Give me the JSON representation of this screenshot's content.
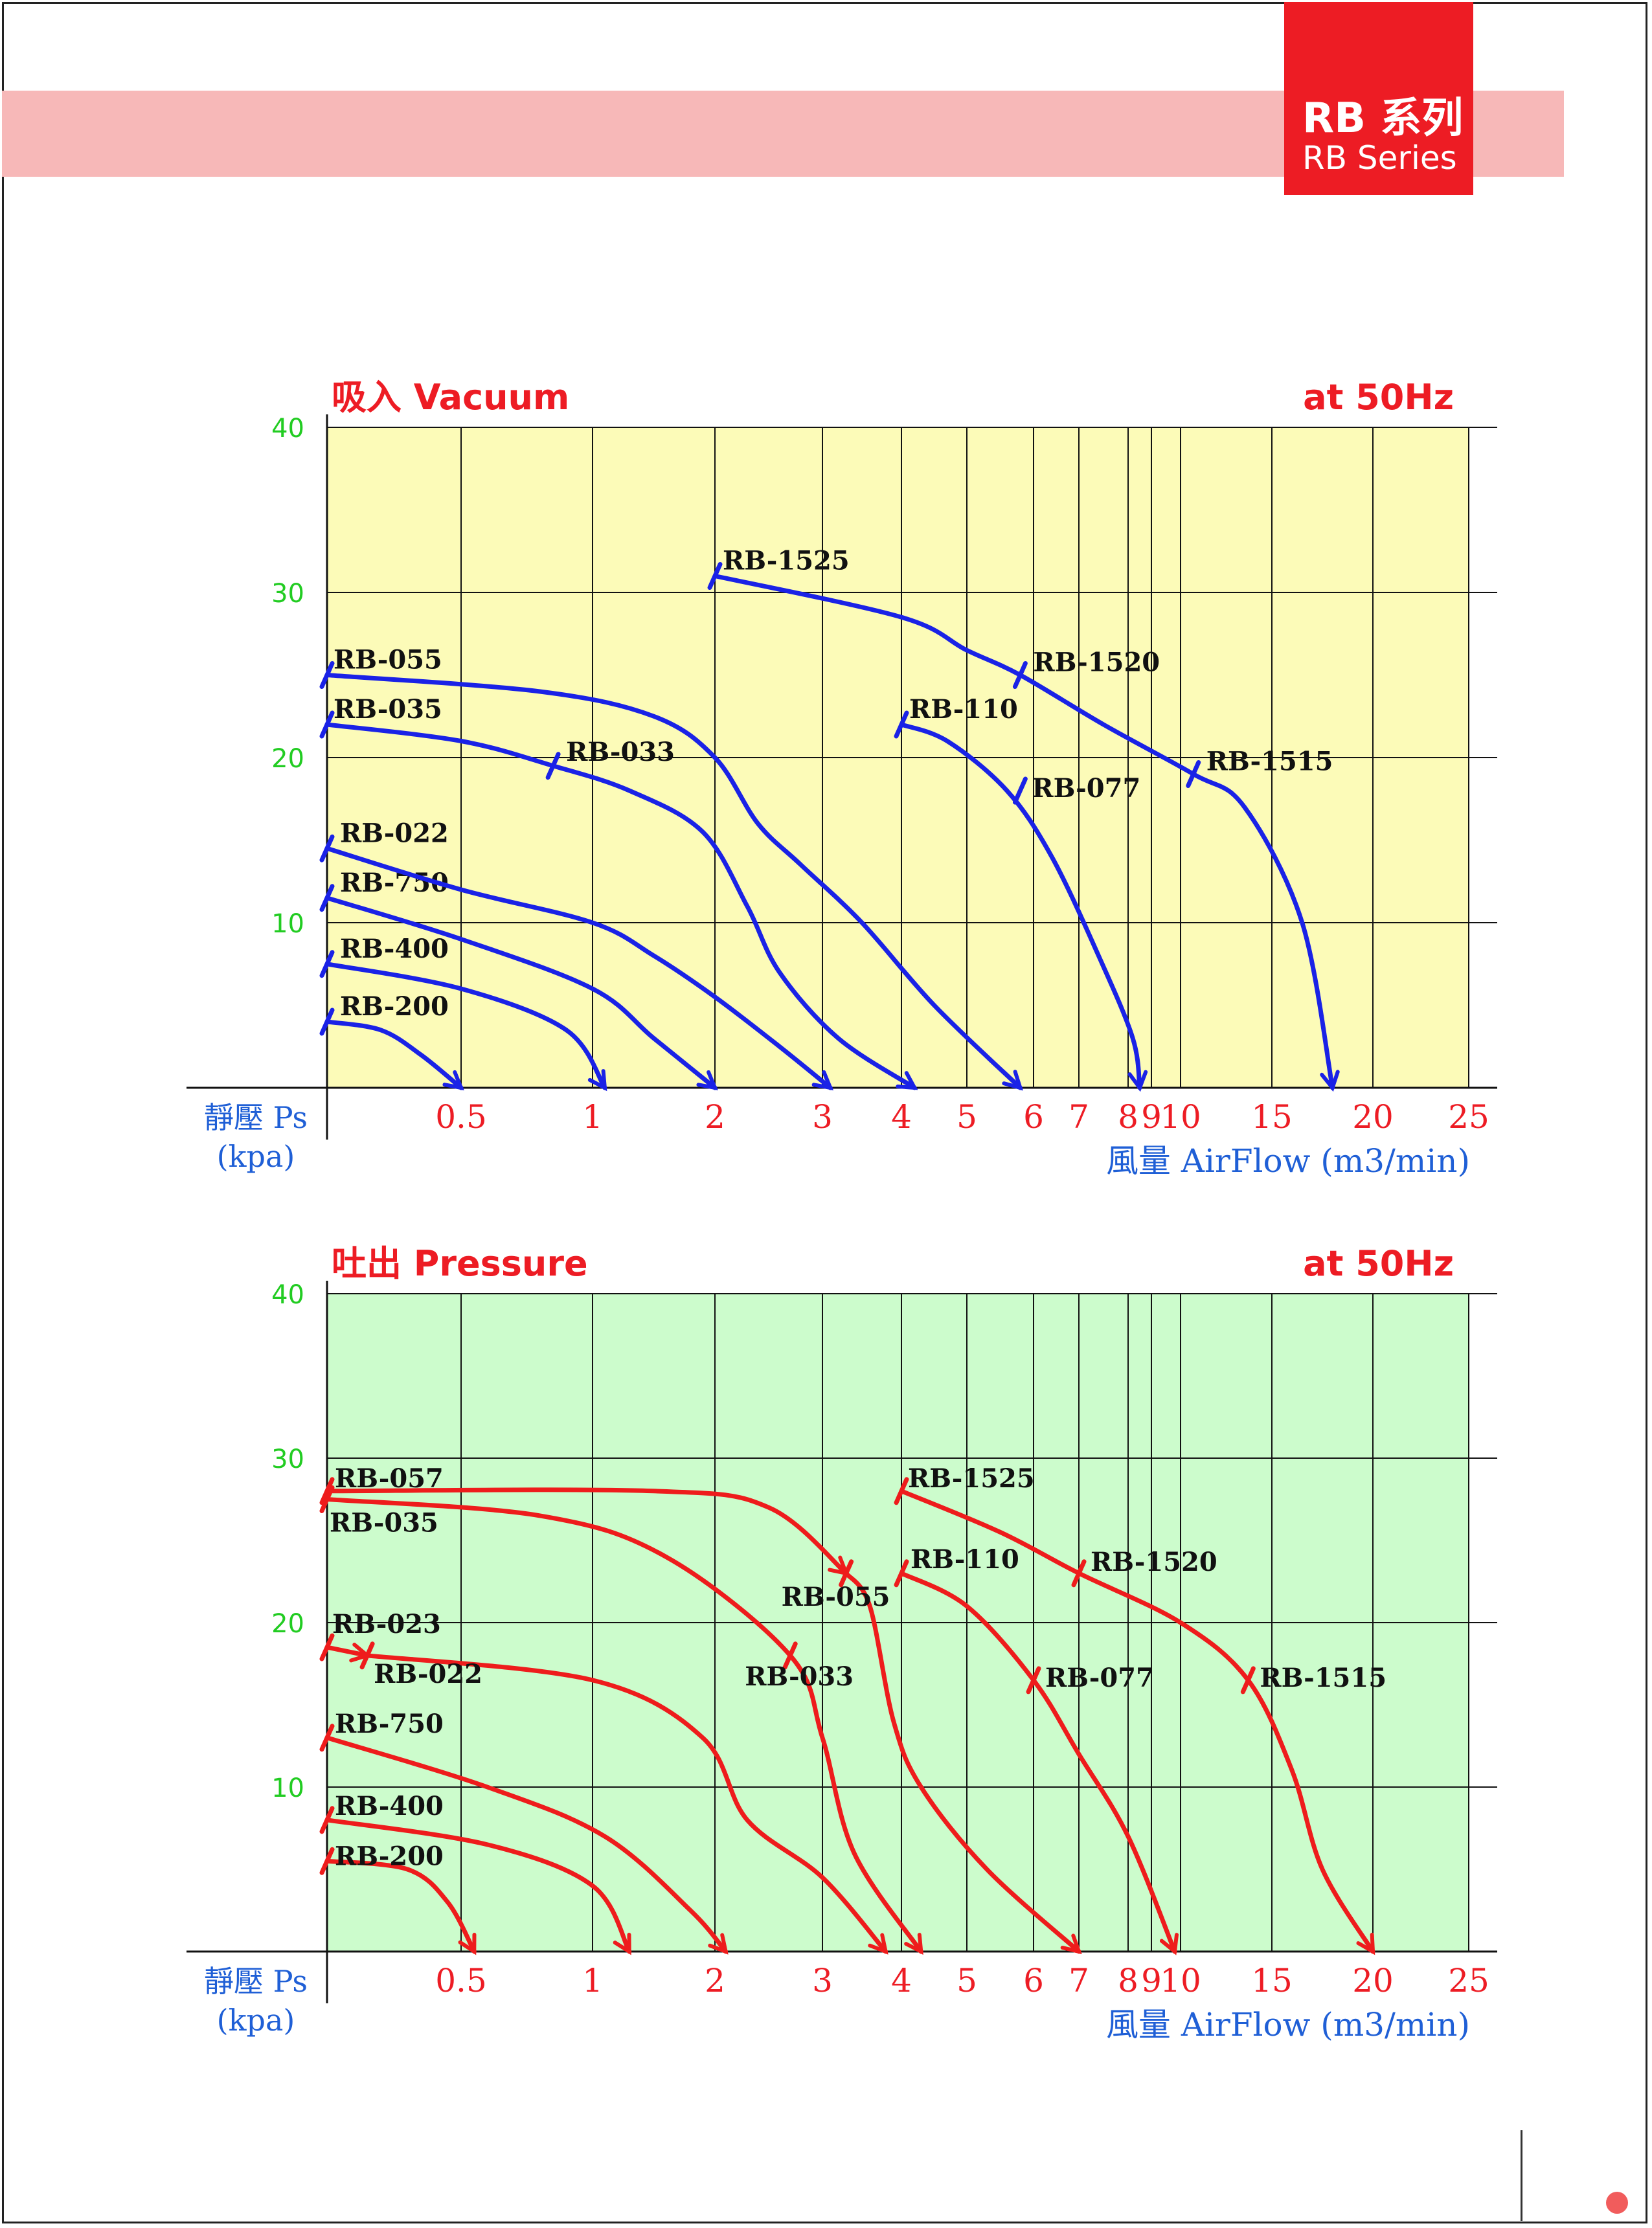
{
  "header": {
    "series_zh": "RB 系列",
    "series_en": "RB Series"
  },
  "colors": {
    "brand_red": "#ed1c24",
    "band_pink": "#f7b8b8",
    "vacuum_bg": "#fcfbb8",
    "pressure_bg": "#ccfccc",
    "vacuum_line": "#1a22e6",
    "pressure_line": "#ee1c1c",
    "ytick_color": "#22cc22",
    "label_blue": "#1f5fd6"
  },
  "chart_data": [
    {
      "type": "line",
      "title": "吸入 Vacuum",
      "subtitle": "at 50Hz",
      "ylabel": "靜壓 Ps (kpa)",
      "xlabel": "風量 AirFlow (m3/min)",
      "x_scale": "nonlinear",
      "x_ticks": [
        "0.5",
        "1",
        "2",
        "3",
        "4",
        "5",
        "6",
        "7",
        "8",
        "9",
        "10",
        "15",
        "20",
        "25"
      ],
      "y_ticks": [
        10,
        20,
        30,
        40
      ],
      "ylim": [
        0,
        40
      ],
      "grid": true,
      "series": [
        {
          "name": "RB-200",
          "points": [
            [
              0,
              4
            ],
            [
              0.2,
              3.5
            ],
            [
              0.35,
              2
            ],
            [
              0.5,
              0
            ]
          ]
        },
        {
          "name": "RB-400",
          "points": [
            [
              0,
              7.5
            ],
            [
              0.5,
              6
            ],
            [
              0.9,
              3.5
            ],
            [
              1.1,
              0
            ]
          ]
        },
        {
          "name": "RB-750",
          "points": [
            [
              0,
              11.5
            ],
            [
              0.5,
              9
            ],
            [
              1,
              6
            ],
            [
              1.5,
              3
            ],
            [
              2,
              0
            ]
          ]
        },
        {
          "name": "RB-022",
          "points": [
            [
              0,
              14.5
            ],
            [
              0.5,
              12
            ],
            [
              1,
              10
            ],
            [
              1.5,
              8
            ],
            [
              2,
              5.5
            ],
            [
              2.6,
              2.5
            ],
            [
              3.1,
              0
            ]
          ]
        },
        {
          "name": "RB-035",
          "points": [
            [
              0,
              22
            ],
            [
              0.5,
              21
            ],
            [
              0.85,
              19.5
            ],
            [
              1.3,
              18
            ],
            [
              1.9,
              15.5
            ],
            [
              2.3,
              11
            ],
            [
              2.6,
              7
            ],
            [
              3.2,
              3
            ],
            [
              4.2,
              0
            ]
          ]
        },
        {
          "name": "RB-033",
          "points": [
            [
              0.85,
              19.5
            ]
          ]
        },
        {
          "name": "RB-055",
          "points": [
            [
              0,
              25
            ],
            [
              0.8,
              24
            ],
            [
              1.5,
              22.5
            ],
            [
              2,
              20
            ],
            [
              2.4,
              16
            ],
            [
              2.8,
              13.5
            ],
            [
              3.5,
              10
            ],
            [
              4.5,
              5
            ],
            [
              5.8,
              0
            ]
          ]
        },
        {
          "name": "RB-110",
          "points": [
            [
              4,
              22
            ],
            [
              4.7,
              21
            ],
            [
              5.6,
              18
            ],
            [
              6.4,
              14
            ],
            [
              7.4,
              8
            ],
            [
              8.2,
              3
            ],
            [
              8.5,
              0
            ]
          ]
        },
        {
          "name": "RB-077",
          "points": [
            [
              5.8,
              18
            ]
          ]
        },
        {
          "name": "RB-1525",
          "points": [
            [
              2,
              31
            ],
            [
              4,
              28.5
            ],
            [
              5,
              26.5
            ],
            [
              5.8,
              25
            ],
            [
              7.5,
              22
            ],
            [
              10.7,
              19
            ],
            [
              13.5,
              17
            ],
            [
              16.5,
              10
            ],
            [
              18,
              0
            ]
          ]
        },
        {
          "name": "RB-1520",
          "points": [
            [
              5.8,
              25
            ]
          ]
        },
        {
          "name": "RB-1515",
          "points": [
            [
              10.7,
              19
            ]
          ]
        }
      ]
    },
    {
      "type": "line",
      "title": "吐出 Pressure",
      "subtitle": "at 50Hz",
      "ylabel": "靜壓 Ps (kpa)",
      "xlabel": "風量 AirFlow (m3/min)",
      "x_scale": "nonlinear",
      "x_ticks": [
        "0.5",
        "1",
        "2",
        "3",
        "4",
        "5",
        "6",
        "7",
        "8",
        "9",
        "10",
        "15",
        "20",
        "25"
      ],
      "y_ticks": [
        10,
        20,
        30,
        40
      ],
      "ylim": [
        0,
        40
      ],
      "grid": true,
      "series": [
        {
          "name": "RB-200",
          "points": [
            [
              0,
              5.5
            ],
            [
              0.3,
              5
            ],
            [
              0.45,
              3
            ],
            [
              0.55,
              0
            ]
          ]
        },
        {
          "name": "RB-400",
          "points": [
            [
              0,
              8
            ],
            [
              0.6,
              6.5
            ],
            [
              1,
              4
            ],
            [
              1.3,
              0
            ]
          ]
        },
        {
          "name": "RB-750",
          "points": [
            [
              0,
              13
            ],
            [
              0.6,
              10
            ],
            [
              1.1,
              7
            ],
            [
              1.8,
              2.5
            ],
            [
              2.1,
              0
            ]
          ]
        },
        {
          "name": "RB-023",
          "points": [
            [
              0,
              18.5
            ],
            [
              0.15,
              18
            ]
          ]
        },
        {
          "name": "RB-022",
          "points": [
            [
              0.15,
              18
            ],
            [
              1,
              16.5
            ],
            [
              1.9,
              13
            ],
            [
              2.3,
              8
            ],
            [
              3,
              4.5
            ],
            [
              3.8,
              0
            ]
          ]
        },
        {
          "name": "RB-035",
          "points": [
            [
              0,
              27.5
            ],
            [
              0.8,
              26.5
            ],
            [
              1.6,
              24
            ],
            [
              2.7,
              18
            ],
            [
              3,
              13
            ],
            [
              3.4,
              6
            ],
            [
              4.3,
              0
            ]
          ]
        },
        {
          "name": "RB-033",
          "points": [
            [
              2.7,
              18
            ]
          ]
        },
        {
          "name": "RB-057",
          "points": [
            [
              0,
              28
            ],
            [
              1.5,
              28
            ],
            [
              2.5,
              27
            ],
            [
              3.3,
              23
            ]
          ]
        },
        {
          "name": "RB-055",
          "points": [
            [
              3.3,
              23
            ],
            [
              3.6,
              21
            ],
            [
              3.9,
              14
            ],
            [
              4.3,
              10
            ],
            [
              5.3,
              5
            ],
            [
              7,
              0
            ]
          ]
        },
        {
          "name": "RB-110",
          "points": [
            [
              4,
              23
            ],
            [
              5,
              21
            ],
            [
              6,
              16.5
            ],
            [
              7,
              12
            ],
            [
              8,
              7
            ],
            [
              9.8,
              0
            ]
          ]
        },
        {
          "name": "RB-077",
          "points": [
            [
              6,
              16.5
            ]
          ]
        },
        {
          "name": "RB-1525",
          "points": [
            [
              4,
              28
            ],
            [
              5.5,
              25.5
            ],
            [
              7,
              23
            ],
            [
              10,
              20
            ],
            [
              13.7,
              16.5
            ],
            [
              16,
              11
            ],
            [
              17.5,
              5
            ],
            [
              20,
              0
            ]
          ]
        },
        {
          "name": "RB-1520",
          "points": [
            [
              7,
              23
            ]
          ]
        },
        {
          "name": "RB-1515",
          "points": [
            [
              13.7,
              16.5
            ]
          ]
        }
      ]
    }
  ]
}
